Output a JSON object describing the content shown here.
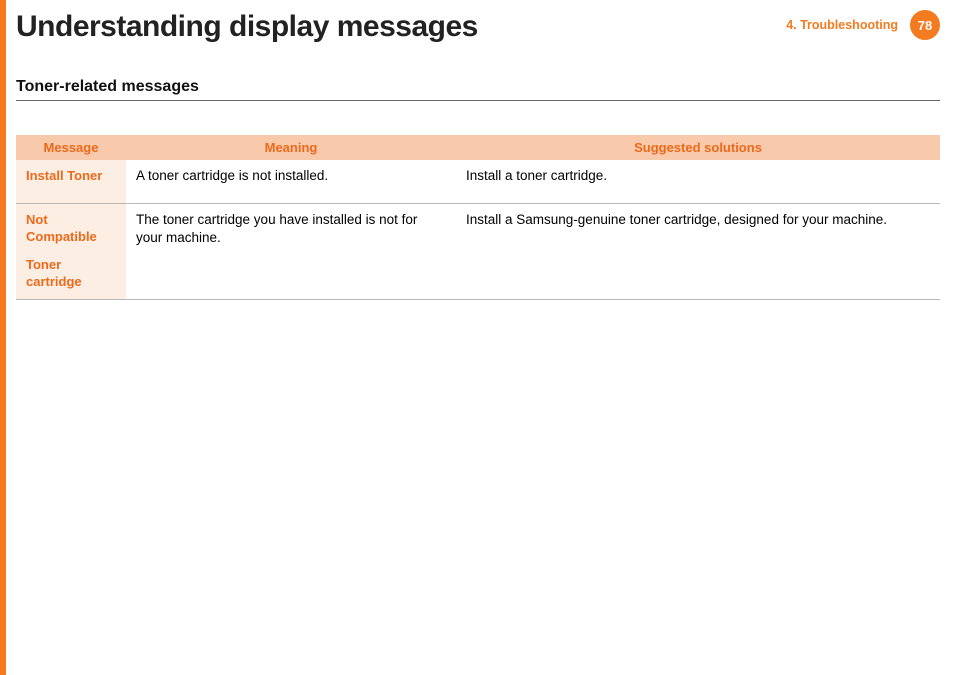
{
  "page": {
    "title": "Understanding display messages",
    "chapter_label": "4.  Troubleshooting",
    "page_number": "78"
  },
  "section": {
    "title": "Toner-related messages"
  },
  "table": {
    "headers": {
      "message": "Message",
      "meaning": "Meaning",
      "solution": "Suggested solutions"
    },
    "rows": [
      {
        "message_main": "Install Toner",
        "message_sub": "",
        "meaning": "A toner cartridge is not installed.",
        "solution": "Install a toner cartridge."
      },
      {
        "message_main": "Not Compatible",
        "message_sub": "Toner cartridge",
        "meaning": "The toner cartridge you have installed is not for your machine.",
        "solution": "Install a Samsung-genuine toner cartridge, designed for your machine."
      }
    ]
  },
  "colors": {
    "accent": "#f47b20",
    "header_bg": "#f8c9ab",
    "header_text": "#ec6a1b",
    "msg_cell_bg": "#fdeee3",
    "row_border": "#b8b8b8"
  }
}
